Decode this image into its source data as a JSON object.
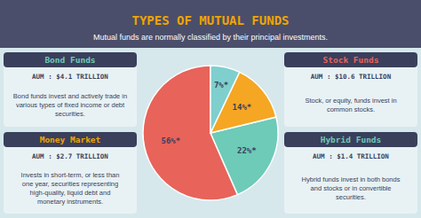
{
  "chart_data": {
    "type": "pie",
    "title": "TYPES OF MUTUAL FUNDS",
    "subtitle": "Mutual funds are normally classified by their principal investments.",
    "values": [
      56,
      22,
      14,
      7
    ],
    "value_labels": [
      "56%*",
      "22%*",
      "14%*",
      "7%*"
    ],
    "colors": [
      "#e8635a",
      "#6dcbb8",
      "#f5a623",
      "#7ecfcd"
    ],
    "data_labels": true,
    "annotations": [
      {
        "title": "Bond Funds",
        "label": "AUM : $4.1 TRILLION",
        "text": "Bond funds invest and actively trade in\nvarious types of fixed income or debt\nsecurities.",
        "color": "#6dcbb8"
      },
      {
        "title": "Money Market",
        "label": "AUM : $2.7 TRILLION",
        "text": "Invests in short-term, or less than\none year, securities representing\nhigh-quality, liquid debt and\nmonetary instruments.",
        "color": "#f0a500"
      },
      {
        "title": "Stock Funds",
        "label": "AUM : $10.6 TRILLION",
        "text": "Stock, or equity, funds invest in\ncommon stocks.",
        "color": "#e8635a"
      },
      {
        "title": "Hybrid Funds",
        "label": "AUM : $1.4 TRILLION",
        "text": "Hybrid funds invest in both bonds\nand stocks or in convertible\nsecurities.",
        "color": "#6dcbb8"
      }
    ]
  }
}
